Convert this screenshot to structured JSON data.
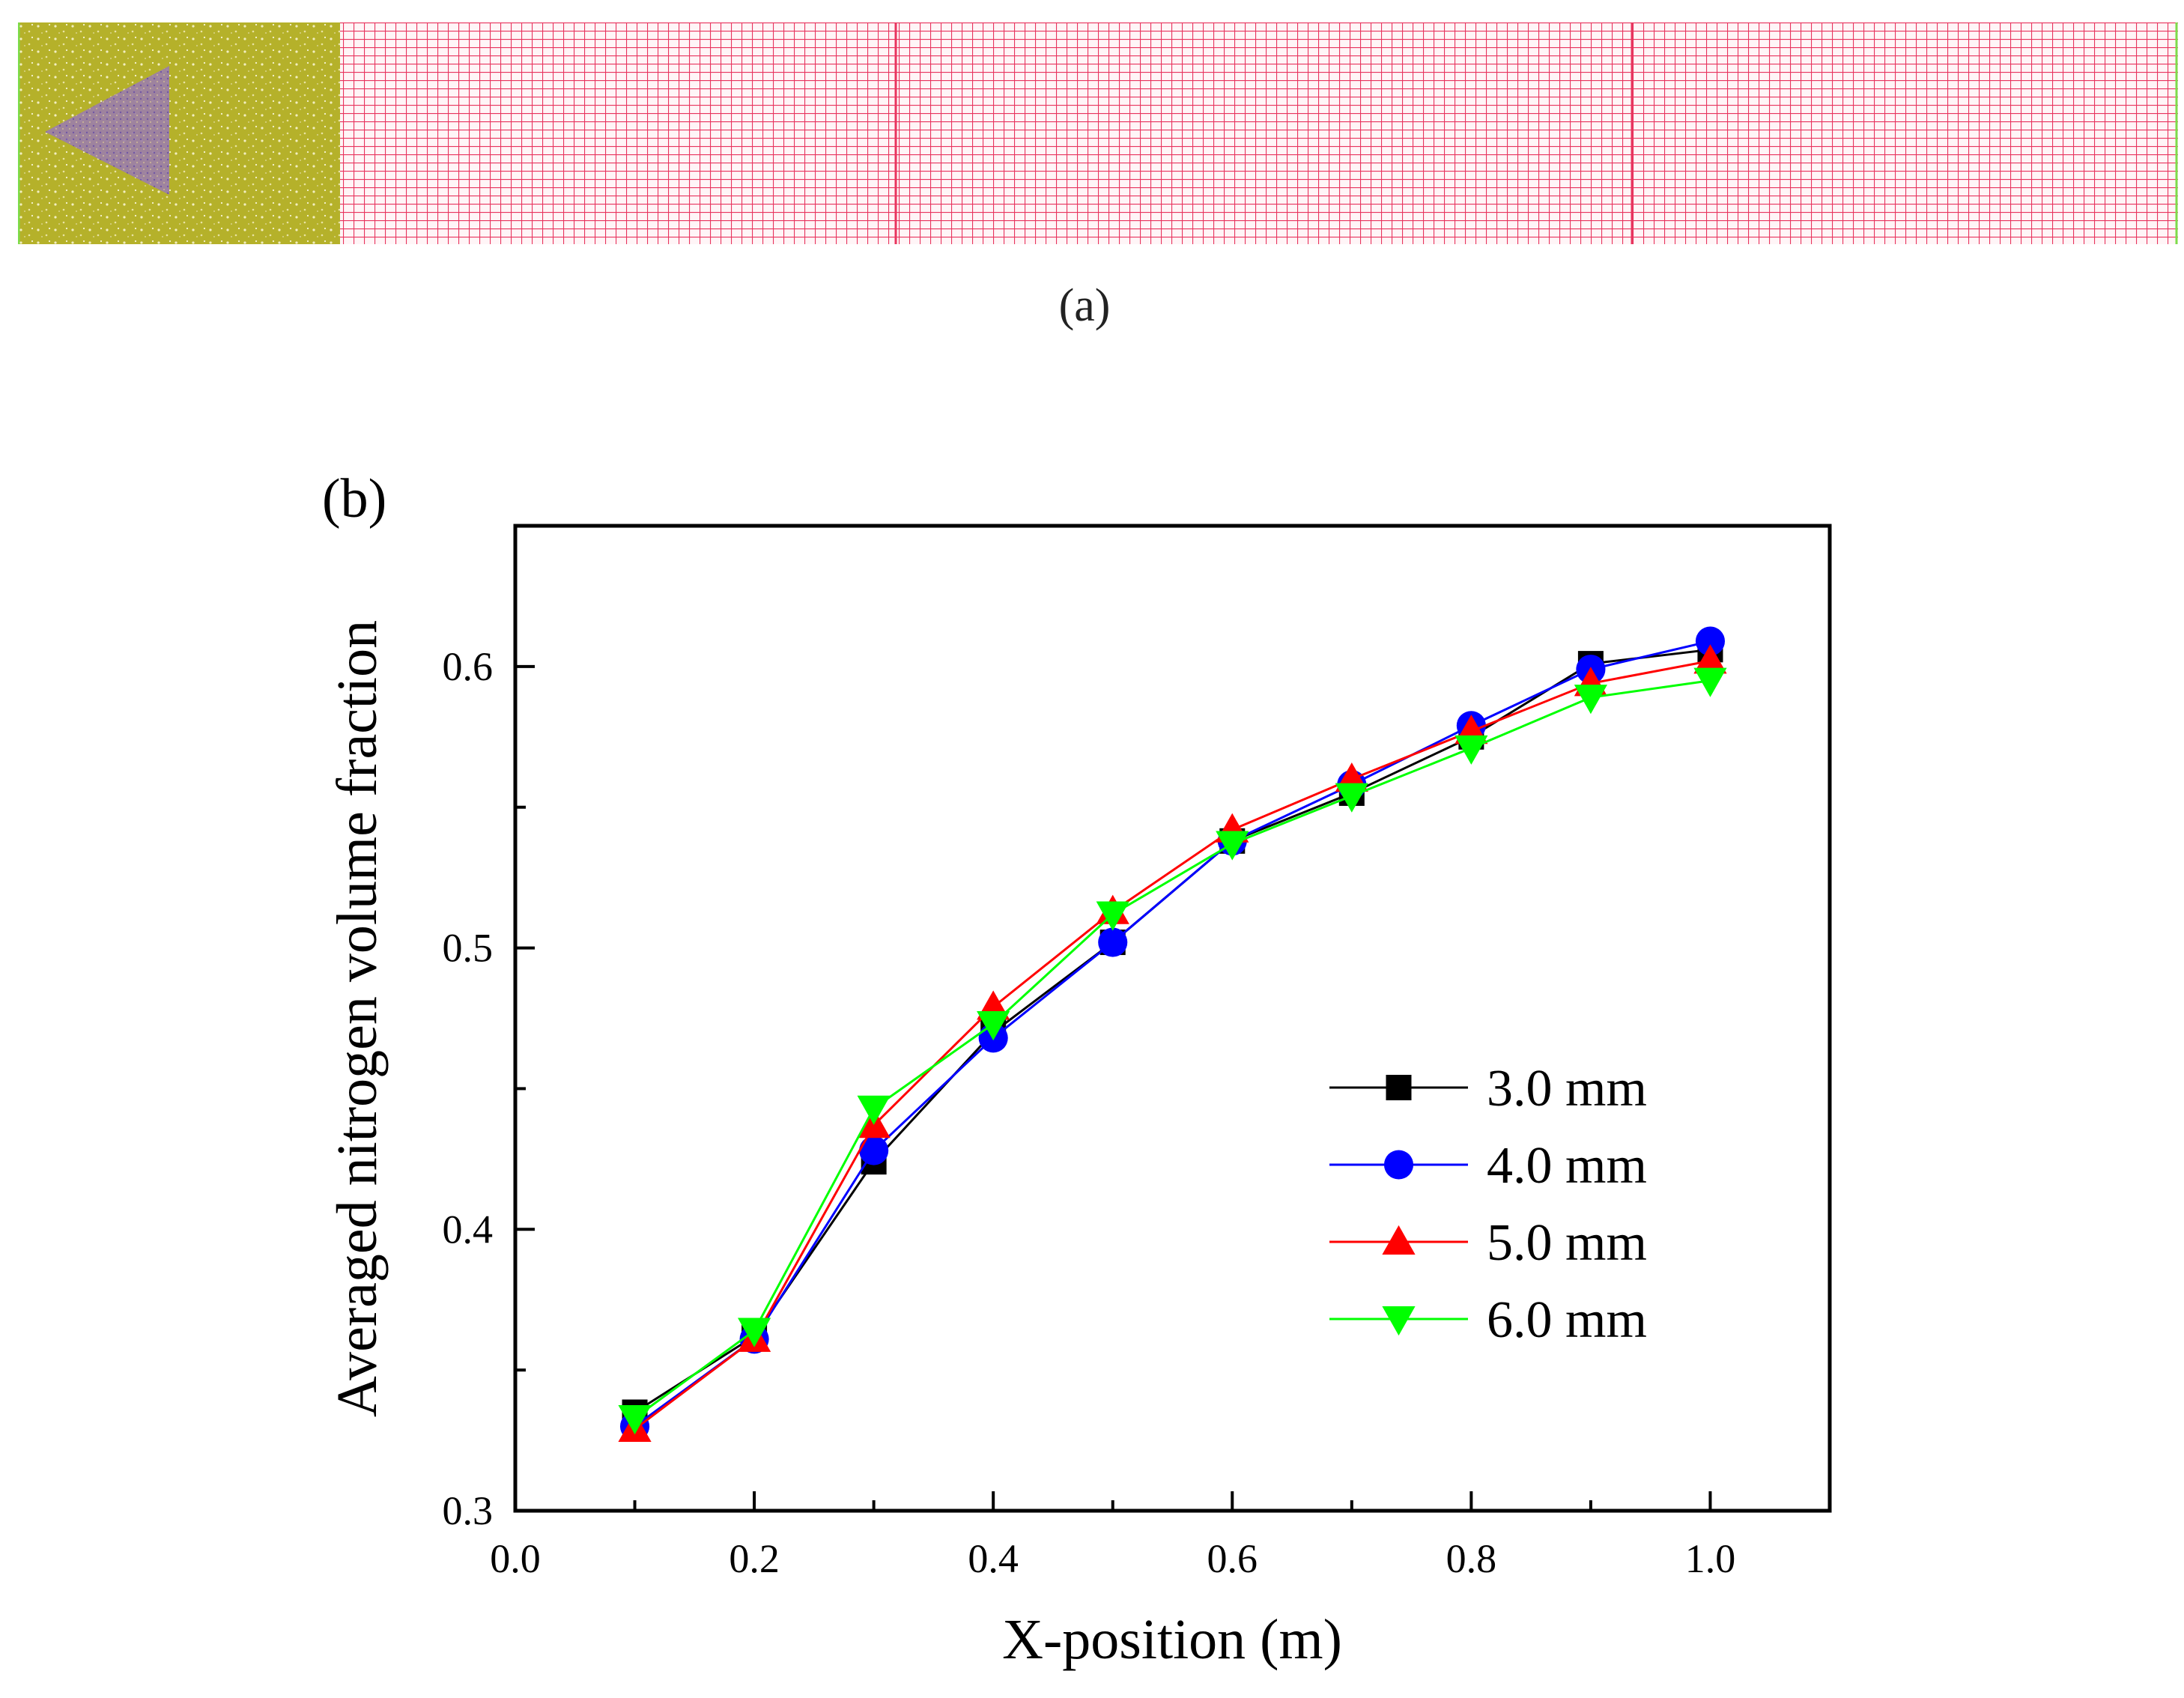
{
  "panel_a": {
    "label": "(a)",
    "colors": {
      "inlet_region": "#b5b12a",
      "mesh": "#e8345e",
      "triangle": "#8b6bb5",
      "edge": "#7ddc4a"
    }
  },
  "panel_b": {
    "label": "(b)"
  },
  "chart_data": {
    "type": "line",
    "xlabel": "X-position (m)",
    "ylabel": "Averaged nitrogen volume fraction",
    "xlim": [
      0.0,
      1.1
    ],
    "ylim": [
      0.3,
      0.65
    ],
    "xticks": [
      "0.0",
      "0.2",
      "0.4",
      "0.6",
      "0.8",
      "1.0"
    ],
    "yticks": [
      "0.3",
      "0.4",
      "0.5",
      "0.6"
    ],
    "grid": false,
    "legend_position": "lower-right",
    "x": [
      0.1,
      0.2,
      0.3,
      0.4,
      0.5,
      0.6,
      0.7,
      0.8,
      0.9,
      1.0
    ],
    "series": [
      {
        "name": "3.0 mm",
        "color": "#000000",
        "marker": "square",
        "values": [
          0.335,
          0.362,
          0.424,
          0.47,
          0.502,
          0.538,
          0.555,
          0.575,
          0.601,
          0.606
        ]
      },
      {
        "name": "4.0 mm",
        "color": "#0000ff",
        "marker": "circle",
        "values": [
          0.33,
          0.361,
          0.428,
          0.468,
          0.502,
          0.538,
          0.558,
          0.579,
          0.599,
          0.609
        ]
      },
      {
        "name": "5.0 mm",
        "color": "#ff0000",
        "marker": "triangle-up",
        "values": [
          0.329,
          0.361,
          0.437,
          0.479,
          0.513,
          0.542,
          0.56,
          0.577,
          0.594,
          0.602
        ]
      },
      {
        "name": "6.0 mm",
        "color": "#00ff00",
        "marker": "triangle-down",
        "values": [
          0.333,
          0.364,
          0.443,
          0.473,
          0.512,
          0.537,
          0.554,
          0.571,
          0.589,
          0.595
        ]
      }
    ]
  }
}
